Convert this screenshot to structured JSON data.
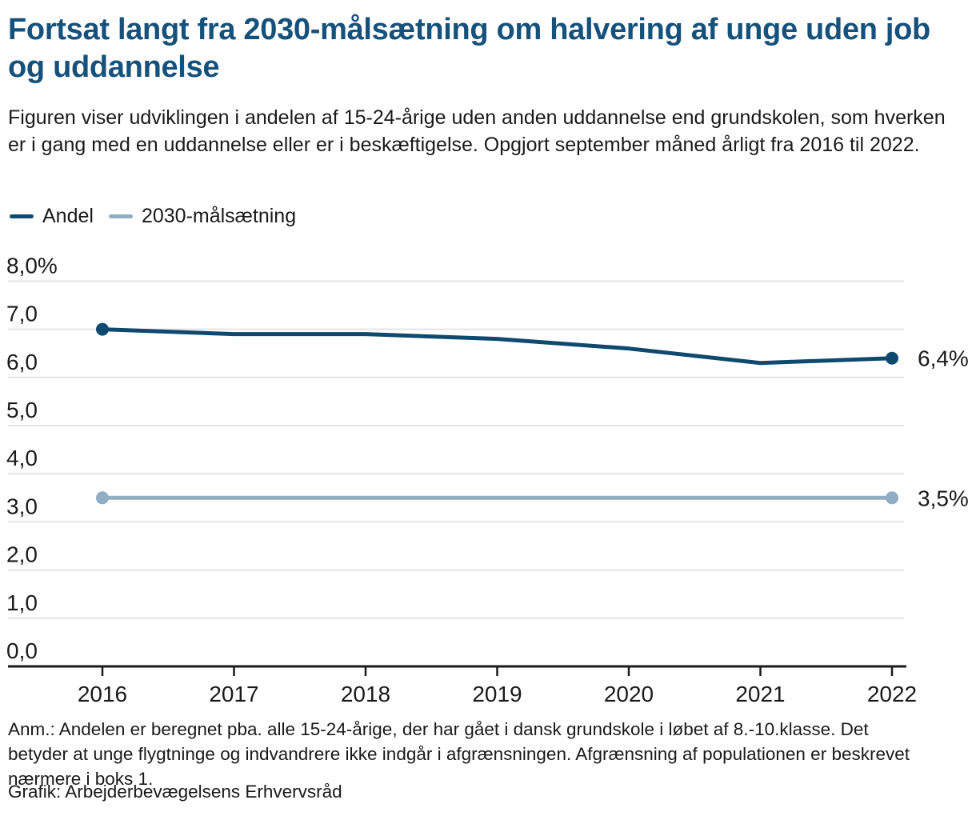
{
  "header": {
    "title": "Fortsat langt fra 2030-målsætning om halvering af unge uden job og uddannelse",
    "subtitle": "Figuren viser udviklingen i andelen af 15-24-årige uden anden uddannelse end grundskolen, som hverken er i gang med en uddannelse eller er i beskæftigelse. Opgjort september måned årligt fra 2016 til 2022."
  },
  "legend": [
    {
      "label": "Andel",
      "color": "#0F4A6E"
    },
    {
      "label": "2030-målsætning",
      "color": "#8FAEC3"
    }
  ],
  "chart_data": {
    "type": "line",
    "x": [
      2016,
      2017,
      2018,
      2019,
      2020,
      2021,
      2022
    ],
    "series": [
      {
        "name": "Andel",
        "color": "#0F4A6E",
        "values": [
          7.0,
          6.9,
          6.9,
          6.8,
          6.6,
          6.3,
          6.4
        ],
        "end_label": "6,4%",
        "end_dots": true
      },
      {
        "name": "2030-målsætning",
        "color": "#8FAEC3",
        "values": [
          3.5,
          3.5,
          3.5,
          3.5,
          3.5,
          3.5,
          3.5
        ],
        "end_label": "3,5%",
        "end_dots": true
      }
    ],
    "y_ticks": [
      {
        "value": 8,
        "label": "8,0%"
      },
      {
        "value": 7,
        "label": "7,0"
      },
      {
        "value": 6,
        "label": "6,0"
      },
      {
        "value": 5,
        "label": "5,0"
      },
      {
        "value": 4,
        "label": "4,0"
      },
      {
        "value": 3,
        "label": "3,0"
      },
      {
        "value": 2,
        "label": "2,0"
      },
      {
        "value": 1,
        "label": "1,0"
      },
      {
        "value": 0,
        "label": "0,0"
      }
    ],
    "ylim": [
      0,
      8
    ],
    "grid": true,
    "grid_color": "#E4E4E4",
    "axis_color": "#1a1a1a",
    "tick_label_color": "#1a1a1a",
    "legend_position": "top-left"
  },
  "footer": {
    "note": "Anm.: Andelen er beregnet pba. alle 15-24-årige, der har gået i dansk grundskole i løbet af 8.-10.klasse. Det betyder at unge flygtninge og indvandrere ikke indgår i afgrænsningen. Afgrænsning af populationen er beskrevet nærmere i boks 1.",
    "credit": "Grafik: Arbejderbevægelsens Erhvervsråd"
  }
}
